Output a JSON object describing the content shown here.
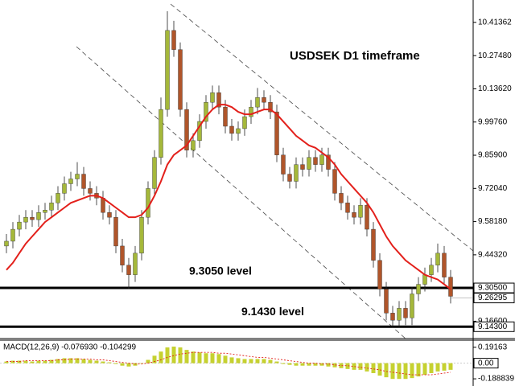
{
  "chart_data": [
    {
      "type": "candlestick",
      "title": "USDSEK D1 timeframe",
      "open": [
        9.48,
        9.5,
        9.55,
        9.58,
        9.6,
        9.59,
        9.62,
        9.63,
        9.66,
        9.7,
        9.74,
        9.76,
        9.78,
        9.72,
        9.7,
        9.68,
        9.62,
        9.6,
        9.48,
        9.4,
        9.36,
        9.45,
        9.6,
        9.72,
        9.85,
        10.05,
        10.38,
        10.3,
        10.05,
        9.88,
        9.92,
        10.0,
        10.08,
        10.12,
        10.06,
        9.98,
        9.95,
        9.97,
        10.02,
        10.06,
        10.1,
        10.08,
        10.04,
        9.86,
        9.78,
        9.75,
        9.82,
        9.8,
        9.85,
        9.82,
        9.86,
        9.8,
        9.7,
        9.66,
        9.62,
        9.6,
        9.65,
        9.55,
        9.42,
        9.3,
        9.2,
        9.17,
        9.22,
        9.18,
        9.28,
        9.32,
        9.36,
        9.4,
        9.45,
        9.35
      ],
      "high": [
        9.53,
        9.58,
        9.61,
        9.63,
        9.63,
        9.65,
        9.66,
        9.69,
        9.73,
        9.77,
        9.79,
        9.83,
        9.81,
        9.75,
        9.73,
        9.71,
        9.65,
        9.63,
        9.51,
        9.43,
        9.48,
        9.63,
        9.75,
        9.88,
        10.1,
        10.46,
        10.42,
        10.33,
        10.08,
        9.95,
        10.03,
        10.11,
        10.15,
        10.15,
        10.09,
        10.01,
        10.0,
        10.05,
        10.09,
        10.14,
        10.13,
        10.11,
        10.07,
        9.89,
        9.81,
        9.85,
        9.85,
        9.88,
        9.88,
        9.89,
        9.89,
        9.83,
        9.73,
        9.69,
        9.65,
        9.68,
        9.68,
        9.58,
        9.45,
        9.33,
        9.23,
        9.25,
        9.25,
        9.31,
        9.35,
        9.39,
        9.43,
        9.49,
        9.48,
        9.38
      ],
      "low": [
        9.45,
        9.47,
        9.52,
        9.55,
        9.56,
        9.56,
        9.59,
        9.6,
        9.63,
        9.67,
        9.71,
        9.73,
        9.69,
        9.67,
        9.65,
        9.59,
        9.57,
        9.45,
        9.37,
        9.3,
        9.33,
        9.42,
        9.57,
        9.69,
        9.82,
        10.02,
        10.27,
        10.02,
        9.85,
        9.85,
        9.89,
        9.97,
        10.05,
        10.03,
        9.95,
        9.92,
        9.92,
        9.94,
        9.99,
        10.03,
        10.05,
        10.01,
        9.83,
        9.75,
        9.72,
        9.72,
        9.77,
        9.77,
        9.79,
        9.79,
        9.77,
        9.67,
        9.63,
        9.59,
        9.57,
        9.57,
        9.52,
        9.39,
        9.27,
        9.17,
        9.14,
        9.14,
        9.15,
        9.15,
        9.25,
        9.29,
        9.33,
        9.37,
        9.32,
        9.24
      ],
      "close": [
        9.5,
        9.55,
        9.58,
        9.6,
        9.59,
        9.62,
        9.63,
        9.66,
        9.7,
        9.74,
        9.76,
        9.78,
        9.72,
        9.7,
        9.68,
        9.62,
        9.6,
        9.48,
        9.4,
        9.36,
        9.45,
        9.6,
        9.72,
        9.85,
        10.05,
        10.38,
        10.3,
        10.05,
        9.88,
        9.92,
        10.0,
        10.08,
        10.12,
        10.06,
        9.98,
        9.95,
        9.97,
        10.02,
        10.06,
        10.1,
        10.08,
        10.04,
        9.86,
        9.78,
        9.75,
        9.82,
        9.8,
        9.85,
        9.82,
        9.86,
        9.8,
        9.7,
        9.66,
        9.62,
        9.6,
        9.65,
        9.55,
        9.42,
        9.3,
        9.2,
        9.17,
        9.22,
        9.18,
        9.28,
        9.32,
        9.36,
        9.4,
        9.45,
        9.35,
        9.27
      ],
      "ma_values": [
        9.38,
        9.41,
        9.45,
        9.49,
        9.52,
        9.55,
        9.58,
        9.6,
        9.62,
        9.64,
        9.66,
        9.67,
        9.68,
        9.69,
        9.69,
        9.68,
        9.66,
        9.64,
        9.62,
        9.6,
        9.6,
        9.61,
        9.64,
        9.69,
        9.75,
        9.82,
        9.86,
        9.88,
        9.9,
        9.94,
        9.98,
        10.02,
        10.05,
        10.07,
        10.07,
        10.06,
        10.04,
        10.03,
        10.03,
        10.04,
        10.05,
        10.05,
        10.03,
        10.0,
        9.97,
        9.94,
        9.92,
        9.9,
        9.89,
        9.87,
        9.85,
        9.82,
        9.78,
        9.75,
        9.72,
        9.69,
        9.66,
        9.62,
        9.57,
        9.52,
        9.48,
        9.45,
        9.42,
        9.4,
        9.38,
        9.36,
        9.35,
        9.34,
        9.32,
        9.3
      ],
      "up_color": "#a5b83a",
      "down_color": "#b0552a",
      "ma_color": "#e3201b",
      "ylim": [
        9.097,
        10.507
      ],
      "yticks": [
        10.41362,
        {
          "value": 10.2748,
          "label": "10.27480"
        },
        {
          "value": 10.1362,
          "label": "10.13620"
        },
        {
          "value": 9.9976,
          "label": "9.99760"
        },
        {
          "value": 9.859,
          "label": "9.85900"
        },
        {
          "value": 9.7204,
          "label": "9.72040"
        },
        {
          "value": 9.5818,
          "label": "9.58180"
        },
        {
          "value": 9.4432,
          "label": "9.44320"
        },
        {
          "value": 9.166,
          "label": "9.16600"
        }
      ],
      "levels": [
        {
          "value": 9.305,
          "axis_label": "9.30500",
          "text": "9.3050 level"
        },
        {
          "value": 9.143,
          "axis_label": "9.14300",
          "text": "9.1430 level"
        }
      ],
      "last_price": {
        "value": 9.26295,
        "label": "9.26295"
      }
    },
    {
      "type": "macd",
      "title": "MACD(12,26,9) -0.076930 -0.104299",
      "histogram": [
        0.02,
        0.03,
        0.03,
        0.03,
        0.02,
        0.03,
        0.03,
        0.04,
        0.05,
        0.06,
        0.06,
        0.06,
        0.05,
        0.04,
        0.03,
        0.02,
        0.01,
        -0.01,
        -0.03,
        -0.04,
        -0.03,
        0.0,
        0.04,
        0.09,
        0.14,
        0.19,
        0.2,
        0.19,
        0.16,
        0.14,
        0.13,
        0.12,
        0.12,
        0.11,
        0.09,
        0.07,
        0.06,
        0.05,
        0.05,
        0.05,
        0.05,
        0.04,
        0.02,
        -0.01,
        -0.02,
        -0.03,
        -0.03,
        -0.03,
        -0.03,
        -0.03,
        -0.04,
        -0.05,
        -0.06,
        -0.07,
        -0.08,
        -0.08,
        -0.1,
        -0.12,
        -0.15,
        -0.17,
        -0.19,
        -0.19,
        -0.19,
        -0.18,
        -0.16,
        -0.14,
        -0.12,
        -0.1,
        -0.09,
        -0.08
      ],
      "signal": [
        0.02,
        0.02,
        0.02,
        0.03,
        0.03,
        0.03,
        0.03,
        0.03,
        0.04,
        0.04,
        0.05,
        0.05,
        0.05,
        0.05,
        0.04,
        0.04,
        0.03,
        0.02,
        0.01,
        0.0,
        -0.01,
        -0.01,
        0.0,
        0.02,
        0.04,
        0.07,
        0.09,
        0.11,
        0.12,
        0.13,
        0.13,
        0.13,
        0.13,
        0.12,
        0.12,
        0.11,
        0.1,
        0.09,
        0.08,
        0.07,
        0.07,
        0.06,
        0.05,
        0.04,
        0.03,
        0.02,
        0.01,
        0.0,
        0.0,
        -0.01,
        -0.01,
        -0.02,
        -0.03,
        -0.03,
        -0.04,
        -0.05,
        -0.06,
        -0.07,
        -0.08,
        -0.1,
        -0.11,
        -0.12,
        -0.13,
        -0.14,
        -0.14,
        -0.14,
        -0.14,
        -0.13,
        -0.12,
        -0.11
      ],
      "hist_color": "#c6d130",
      "signal_color": "#e3201b",
      "ylim": [
        -0.256,
        0.268
      ],
      "yticks": [
        0.19163,
        {
          "value": 0,
          "label": "0.00"
        },
        -0.188839
      ]
    }
  ]
}
